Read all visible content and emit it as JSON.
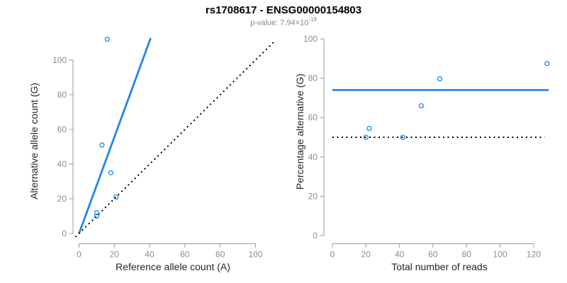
{
  "header": {
    "title": "rs1708617 - ENSG00000154803",
    "subtitle_prefix": "p-value: ",
    "subtitle_mantissa": "7.94×10",
    "subtitle_exponent": "-18"
  },
  "colors": {
    "accent_blue": "#1e87e8",
    "axis_line_gray": "#999999",
    "tick_label_gray": "#8c8c8c",
    "axis_title_color": "#262626",
    "subtitle_gray": "#878787",
    "dotted_line_black": "#000000",
    "background": "#ffffff"
  },
  "chart_data": [
    {
      "type": "scatter",
      "panel": "left",
      "xlabel": "Reference allele count (A)",
      "ylabel": "Alternative allele count (G)",
      "xticks": [
        0,
        20,
        40,
        60,
        80,
        100
      ],
      "yticks": [
        0,
        20,
        40,
        60,
        80,
        100
      ],
      "xlim": [
        0,
        100
      ],
      "ylim": [
        0,
        112
      ],
      "grid": false,
      "legend": "none",
      "points": [
        [
          10,
          10
        ],
        [
          10,
          12
        ],
        [
          21,
          21
        ],
        [
          18,
          35
        ],
        [
          13,
          51
        ],
        [
          16,
          112
        ]
      ],
      "lines": [
        {
          "name": "fit-line",
          "style": "solid",
          "color": "#1e87e8",
          "width": 2.8,
          "from": [
            0,
            0
          ],
          "to": [
            40.6,
            112.7
          ]
        },
        {
          "name": "identity-line",
          "style": "dotted",
          "color": "#000000",
          "width": 2,
          "from": [
            -2,
            -2
          ],
          "to": [
            111,
            111
          ]
        }
      ]
    },
    {
      "type": "scatter",
      "panel": "right",
      "xlabel": "Total number of reads",
      "ylabel": "Percentage alternative (G)",
      "xticks": [
        0,
        20,
        40,
        60,
        80,
        100,
        120
      ],
      "yticks": [
        0,
        20,
        40,
        60,
        80,
        100
      ],
      "xlim": [
        0,
        128
      ],
      "ylim": [
        0,
        100
      ],
      "grid": false,
      "legend": "none",
      "points": [
        [
          20,
          50
        ],
        [
          22,
          54.5
        ],
        [
          42,
          50
        ],
        [
          53,
          66
        ],
        [
          64,
          79.7
        ],
        [
          128,
          87.5
        ]
      ],
      "lines": [
        {
          "name": "mean-percentage-line",
          "style": "solid",
          "color": "#1e87e8",
          "width": 2.8,
          "from": [
            0,
            74
          ],
          "to": [
            129,
            74
          ]
        },
        {
          "name": "fifty-percent-line",
          "style": "dotted",
          "color": "#000000",
          "width": 2,
          "from": [
            0,
            50
          ],
          "to": [
            126.5,
            50
          ]
        }
      ]
    }
  ]
}
